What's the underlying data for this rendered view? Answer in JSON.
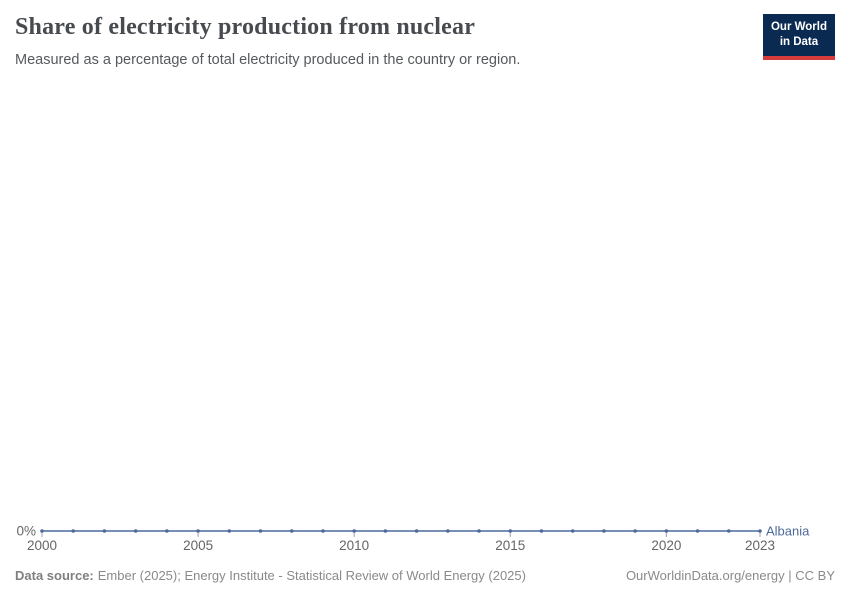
{
  "header": {
    "title": "Share of electricity production from nuclear",
    "subtitle": "Measured as a percentage of total electricity produced in the country or region.",
    "logo": {
      "line1": "Our World",
      "line2": "in Data"
    }
  },
  "footer": {
    "source_label": "Data source:",
    "source_text": "Ember (2025); Energy Institute - Statistical Review of World Energy (2025)",
    "credit": "OurWorldinData.org/energy | CC BY"
  },
  "chart_data": {
    "type": "line",
    "title": "Share of electricity production from nuclear",
    "x": [
      2000,
      2001,
      2002,
      2003,
      2004,
      2005,
      2006,
      2007,
      2008,
      2009,
      2010,
      2011,
      2012,
      2013,
      2014,
      2015,
      2016,
      2017,
      2018,
      2019,
      2020,
      2021,
      2022,
      2023
    ],
    "series": [
      {
        "name": "Albania",
        "color": "#4c6a9c",
        "values": [
          0,
          0,
          0,
          0,
          0,
          0,
          0,
          0,
          0,
          0,
          0,
          0,
          0,
          0,
          0,
          0,
          0,
          0,
          0,
          0,
          0,
          0,
          0,
          0
        ]
      }
    ],
    "x_ticks": [
      2000,
      2005,
      2010,
      2015,
      2020,
      2023
    ],
    "y_ticks": [
      "0%"
    ],
    "y_axis_label": "0%",
    "xlim": [
      2000,
      2023
    ],
    "ylim": [
      0,
      0
    ],
    "grid": false,
    "legend_position": "end-of-line",
    "marker_every_point": true,
    "colors": {
      "axis_tick": "#a3a3a3",
      "tick_label": "#666666"
    }
  }
}
